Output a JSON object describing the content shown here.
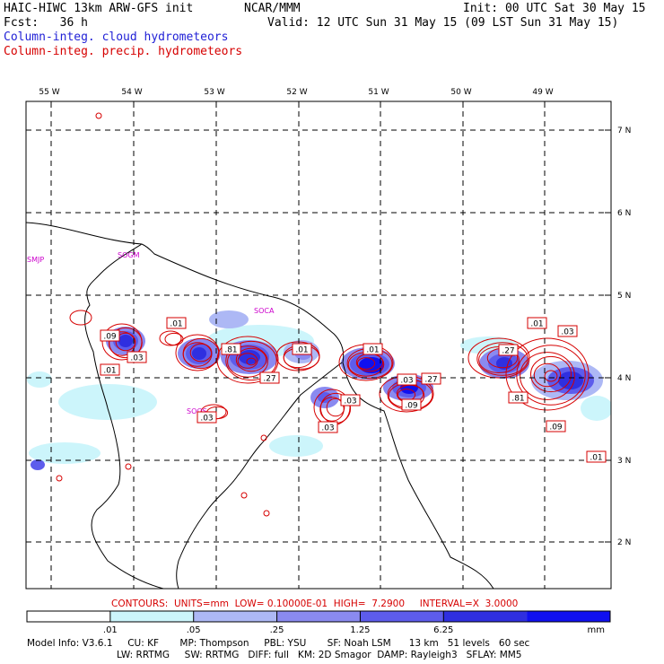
{
  "header": {
    "title": "HAIC-HIWC 13km ARW-GFS init",
    "org": "NCAR/MMM",
    "init": "Init: 00 UTC Sat 30 May 15",
    "fcst": "Fcst:   36 h",
    "valid": "Valid: 12 UTC Sun 31 May 15 (09 LST Sun 31 May 15)",
    "field1": "Column-integ. cloud hydrometeors",
    "field2": "Column-integ. precip. hydrometeors"
  },
  "colors": {
    "cloud_field": "#1f1fd6",
    "precip_contour": "#d60000",
    "station": "#cc00cc",
    "shade_levels": [
      "#ffffff",
      "#ccf5fb",
      "#adb8f5",
      "#8a8af0",
      "#5d5cec",
      "#2f2fe0",
      "#1010f0"
    ]
  },
  "map": {
    "lon_labels": [
      "55 W",
      "54 W",
      "53 W",
      "52 W",
      "51 W",
      "50 W",
      "49 W"
    ],
    "lat_labels": [
      "7 N",
      "6 N",
      "5 N",
      "4 N",
      "3 N",
      "2 N"
    ],
    "stations": [
      "SMJP",
      "SOGM",
      "SOCA",
      "SOOS"
    ],
    "contour_labels": [
      ".09",
      ".01",
      ".03",
      ".01",
      ".81",
      ".03",
      ".27",
      ".01",
      ".03",
      ".03",
      ".01",
      ".03",
      ".27",
      ".09",
      ".27",
      ".01",
      ".03",
      ".81",
      ".09",
      ".01"
    ]
  },
  "footer": {
    "contours": "CONTOURS:  UNITS=mm  LOW= 0.10000E-01  HIGH=  7.2900     INTERVAL=X  3.0000",
    "colorbar_ticks": [
      ".01",
      ".05",
      ".25",
      "1.25",
      "6.25"
    ],
    "colorbar_unit": "mm",
    "model_info_1": "Model Info: V3.6.1     CU: KF       MP: Thompson     PBL: YSU       SF: Noah LSM      13 km   51 levels   60 sec",
    "model_info_2": "LW: RRTMG     SW: RRTMG   DIFF: full   KM: 2D Smagor  DAMP: Rayleigh3   SFLAY: MM5"
  }
}
